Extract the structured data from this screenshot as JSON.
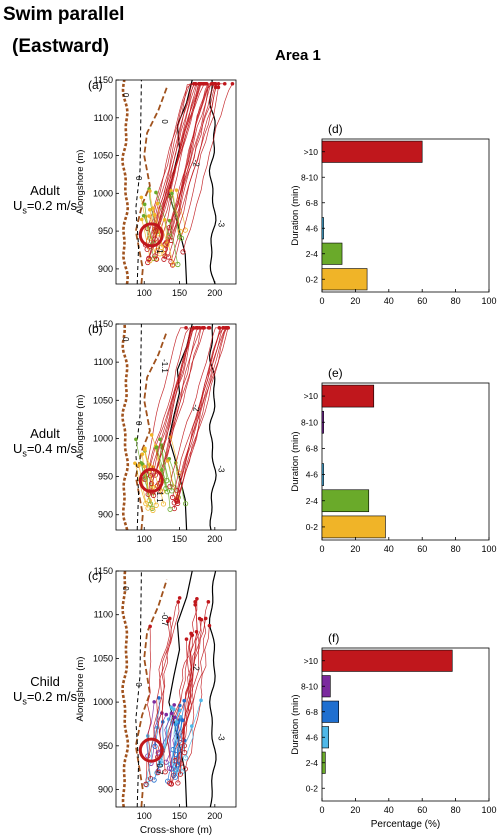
{
  "header": {
    "title_line1": "Swim parallel",
    "title_line2": "(Eastward)",
    "area": "Area 1"
  },
  "rows": [
    {
      "who": "Adult",
      "speed_prefix": "U",
      "speed_sub": "s",
      "speed_value": "=0.2 m/s"
    },
    {
      "who": "Adult",
      "speed_prefix": "U",
      "speed_sub": "s",
      "speed_value": "=0.4 m/s"
    },
    {
      "who": "Child",
      "speed_prefix": "U",
      "speed_sub": "s",
      "speed_value": "=0.2 m/s"
    }
  ],
  "colors": {
    "0-2": "#f0b428",
    "2-4": "#6aaa2a",
    "4-6": "#4fb8e8",
    "6-8": "#1f6fd0",
    "8-10": "#7b2a9e",
    ">10": "#c0171c",
    "contour_dashed": "#a0521d"
  },
  "chart_data": [
    {
      "type": "scatter",
      "panel": "(a)",
      "xlabel": "",
      "ylabel": "Alongshore",
      "ylabel_unit": "(m)",
      "xticks": [
        100,
        150,
        200
      ],
      "yticks": [
        900,
        950,
        1000,
        1050,
        1100,
        1150
      ],
      "xlim": [
        60,
        230
      ],
      "ylim": [
        880,
        1150
      ],
      "contour_labels": [
        "0",
        "0",
        "0",
        "-1",
        "-2",
        "-3"
      ]
    },
    {
      "type": "bar",
      "panel": "(d)",
      "xlabel": "",
      "ylabel": "Duration (min)",
      "categories": [
        ">10",
        "8-10",
        "6-8",
        "4-6",
        "2-4",
        "0-2"
      ],
      "values": [
        60,
        0,
        0,
        1,
        12,
        27
      ],
      "xlim": [
        0,
        100
      ],
      "xticks": [
        0,
        20,
        40,
        60,
        80,
        100
      ]
    },
    {
      "type": "scatter",
      "panel": "(b)",
      "xlabel": "",
      "ylabel": "Alongshore",
      "ylabel_unit": "(m)",
      "xticks": [
        100,
        150,
        200
      ],
      "yticks": [
        900,
        950,
        1000,
        1050,
        1100,
        1150
      ],
      "xlim": [
        60,
        230
      ],
      "ylim": [
        880,
        1150
      ],
      "contour_labels": [
        "0",
        "0",
        "-1.1",
        "-1.1",
        "-2",
        "-3"
      ]
    },
    {
      "type": "bar",
      "panel": "(e)",
      "xlabel": "",
      "ylabel": "Duration (min)",
      "categories": [
        ">10",
        "8-10",
        "6-8",
        "4-6",
        "2-4",
        "0-2"
      ],
      "values": [
        31,
        1,
        0,
        1,
        28,
        38
      ],
      "xlim": [
        0,
        100
      ],
      "xticks": [
        0,
        20,
        40,
        60,
        80,
        100
      ]
    },
    {
      "type": "scatter",
      "panel": "(c)",
      "xlabel": "Cross-shore",
      "xlabel_unit": "(m)",
      "ylabel": "Alongshore",
      "ylabel_unit": "(m)",
      "xticks": [
        100,
        150,
        200
      ],
      "yticks": [
        900,
        950,
        1000,
        1050,
        1100,
        1150
      ],
      "xlim": [
        60,
        230
      ],
      "ylim": [
        880,
        1150
      ],
      "contour_labels": [
        "0",
        "0",
        "-0.7",
        "-0.7",
        "-2",
        "-3"
      ]
    },
    {
      "type": "bar",
      "panel": "(f)",
      "xlabel": "Percentage (%)",
      "ylabel": "Duration (min)",
      "categories": [
        ">10",
        "8-10",
        "6-8",
        "4-6",
        "2-4",
        "0-2"
      ],
      "values": [
        78,
        5,
        10,
        4,
        2,
        0
      ],
      "xlim": [
        0,
        100
      ],
      "xticks": [
        0,
        20,
        40,
        60,
        80,
        100
      ]
    }
  ]
}
